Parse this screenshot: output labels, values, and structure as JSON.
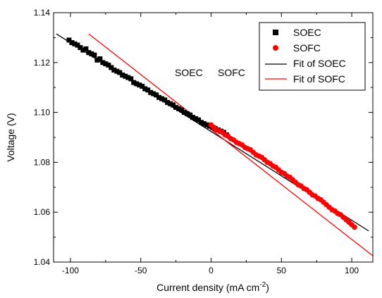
{
  "chart_data": {
    "type": "scatter",
    "xlabel_main": "Current density (mA cm",
    "xlabel_sup": "-2",
    "xlabel_end": ")",
    "ylabel": "Voltage (V)",
    "xlim": [
      -112,
      115
    ],
    "ylim": [
      1.04,
      1.14
    ],
    "x_ticks": [
      -100,
      -50,
      0,
      50,
      100
    ],
    "x_tick_labels": [
      "-100",
      "-50",
      "0",
      "50",
      "100"
    ],
    "y_ticks": [
      1.04,
      1.06,
      1.08,
      1.1,
      1.12,
      1.14
    ],
    "y_tick_labels": [
      "1.04",
      "1.06",
      "1.08",
      "1.10",
      "1.12",
      "1.14"
    ],
    "annotations": [
      "SOEC",
      "SOFC"
    ],
    "colors": {
      "soec": "#000000",
      "sofc": "#ff0000"
    },
    "legend": {
      "position": "top-right",
      "entries": [
        "SOEC",
        "SOFC",
        "Fit of SOEC",
        "Fit of SOFC"
      ]
    },
    "series": [
      {
        "name": "SOEC",
        "marker": "square",
        "color": "#000000",
        "points": [
          [
            -101,
            1.129
          ],
          [
            -99,
            1.128
          ],
          [
            -97,
            1.1275
          ],
          [
            -95,
            1.127
          ],
          [
            -93,
            1.126
          ],
          [
            -91,
            1.125
          ],
          [
            -89,
            1.1255
          ],
          [
            -87,
            1.124
          ],
          [
            -85,
            1.1235
          ],
          [
            -83,
            1.123
          ],
          [
            -81,
            1.121
          ],
          [
            -79,
            1.1215
          ],
          [
            -77,
            1.12
          ],
          [
            -75,
            1.1195
          ],
          [
            -73,
            1.119
          ],
          [
            -71,
            1.118
          ],
          [
            -69,
            1.117
          ],
          [
            -67,
            1.1165
          ],
          [
            -65,
            1.116
          ],
          [
            -63,
            1.115
          ],
          [
            -61,
            1.1145
          ],
          [
            -59,
            1.114
          ],
          [
            -57,
            1.1135
          ],
          [
            -55,
            1.112
          ],
          [
            -53,
            1.1115
          ],
          [
            -51,
            1.111
          ],
          [
            -49,
            1.1105
          ],
          [
            -47,
            1.1095
          ],
          [
            -45,
            1.109
          ],
          [
            -43,
            1.108
          ],
          [
            -41,
            1.1075
          ],
          [
            -39,
            1.107
          ],
          [
            -37,
            1.106
          ],
          [
            -35,
            1.1055
          ],
          [
            -33,
            1.105
          ],
          [
            -31,
            1.104
          ],
          [
            -29,
            1.1035
          ],
          [
            -27,
            1.103
          ],
          [
            -25,
            1.102
          ],
          [
            -23,
            1.1015
          ],
          [
            -21,
            1.101
          ],
          [
            -19,
            1.1
          ],
          [
            -17,
            1.0995
          ],
          [
            -15,
            1.099
          ],
          [
            -13,
            1.098
          ],
          [
            -11,
            1.0975
          ],
          [
            -9,
            1.097
          ],
          [
            -7,
            1.096
          ],
          [
            -5,
            1.0955
          ],
          [
            -3,
            1.095
          ],
          [
            -1,
            1.0945
          ],
          [
            1,
            1.094
          ],
          [
            3,
            1.0935
          ],
          [
            5,
            1.093
          ],
          [
            7,
            1.0925
          ],
          [
            9,
            1.092
          ],
          [
            11,
            1.091
          ]
        ]
      },
      {
        "name": "SOFC",
        "marker": "circle",
        "color": "#ff0000",
        "points": [
          [
            0,
            1.095
          ],
          [
            2,
            1.094
          ],
          [
            4,
            1.093
          ],
          [
            6,
            1.0925
          ],
          [
            8,
            1.092
          ],
          [
            10,
            1.091
          ],
          [
            12,
            1.0905
          ],
          [
            14,
            1.0895
          ],
          [
            16,
            1.089
          ],
          [
            18,
            1.088
          ],
          [
            20,
            1.0875
          ],
          [
            22,
            1.087
          ],
          [
            24,
            1.086
          ],
          [
            26,
            1.0855
          ],
          [
            28,
            1.085
          ],
          [
            30,
            1.084
          ],
          [
            32,
            1.083
          ],
          [
            34,
            1.0825
          ],
          [
            36,
            1.082
          ],
          [
            38,
            1.081
          ],
          [
            40,
            1.08
          ],
          [
            42,
            1.0795
          ],
          [
            44,
            1.0785
          ],
          [
            46,
            1.078
          ],
          [
            48,
            1.077
          ],
          [
            50,
            1.076
          ],
          [
            52,
            1.0755
          ],
          [
            54,
            1.0745
          ],
          [
            56,
            1.074
          ],
          [
            58,
            1.073
          ],
          [
            60,
            1.072
          ],
          [
            62,
            1.071
          ],
          [
            64,
            1.0705
          ],
          [
            66,
            1.0695
          ],
          [
            68,
            1.069
          ],
          [
            70,
            1.068
          ],
          [
            72,
            1.067
          ],
          [
            74,
            1.0665
          ],
          [
            76,
            1.0655
          ],
          [
            78,
            1.065
          ],
          [
            80,
            1.064
          ],
          [
            82,
            1.063
          ],
          [
            84,
            1.062
          ],
          [
            86,
            1.061
          ],
          [
            88,
            1.0605
          ],
          [
            90,
            1.0595
          ],
          [
            92,
            1.059
          ],
          [
            94,
            1.058
          ],
          [
            96,
            1.057
          ],
          [
            98,
            1.056
          ],
          [
            100,
            1.055
          ],
          [
            102,
            1.054
          ]
        ]
      }
    ],
    "fits": [
      {
        "name": "Fit of SOEC",
        "color": "#000000",
        "x": [
          -110,
          112
        ],
        "y": [
          1.1315,
          1.0525
        ]
      },
      {
        "name": "Fit of SOFC",
        "color": "#ff0000",
        "x": [
          -87,
          115
        ],
        "y": [
          1.1315,
          1.0425
        ]
      }
    ]
  }
}
